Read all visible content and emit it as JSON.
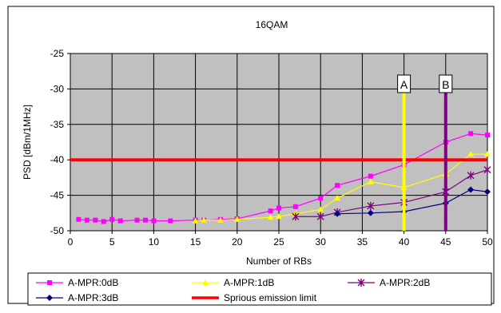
{
  "chart_data": {
    "type": "line",
    "title": "16QAM",
    "xlabel": "Number of RBs",
    "ylabel": "PSD [dBm/1MHz]",
    "xlim": [
      0,
      50
    ],
    "ylim": [
      -50,
      -25
    ],
    "x_ticks": [
      0,
      5,
      10,
      15,
      20,
      25,
      30,
      35,
      40,
      45,
      50
    ],
    "y_ticks": [
      -50,
      -45,
      -40,
      -35,
      -30,
      -25
    ],
    "grid": true,
    "plot_background": "#c0c0c0",
    "legend_position": "bottom",
    "series": [
      {
        "name": "A-MPR:0dB",
        "color": "#ff00ff",
        "marker": "square",
        "x": [
          1,
          2,
          3,
          4,
          5,
          6,
          8,
          9,
          10,
          12,
          15,
          16,
          18,
          20,
          24,
          25,
          27,
          30,
          32,
          36,
          40,
          45,
          48,
          50
        ],
        "y": [
          -48.4,
          -48.5,
          -48.5,
          -48.7,
          -48.4,
          -48.6,
          -48.5,
          -48.5,
          -48.6,
          -48.6,
          -48.5,
          -48.5,
          -48.4,
          -48.3,
          -47.2,
          -46.8,
          -46.6,
          -45.4,
          -43.6,
          -42.3,
          -40.7,
          -37.5,
          -36.3,
          -36.5
        ]
      },
      {
        "name": "A-MPR:1dB",
        "color": "#ffff00",
        "marker": "triangle",
        "x": [
          15,
          16,
          18,
          20,
          24,
          25,
          27,
          30,
          32,
          36,
          40,
          45,
          48,
          50
        ],
        "y": [
          -48.6,
          -48.5,
          -48.5,
          -48.4,
          -48.1,
          -48.0,
          -47.6,
          -47.0,
          -45.4,
          -43.1,
          -43.9,
          -42.0,
          -39.2,
          -39.2
        ]
      },
      {
        "name": "A-MPR:2dB",
        "color": "#800080",
        "marker": "star",
        "x": [
          27,
          30,
          32,
          36,
          40,
          45,
          48,
          50
        ],
        "y": [
          -48.0,
          -48.0,
          -47.4,
          -46.5,
          -46.0,
          -44.5,
          -42.2,
          -41.4
        ]
      },
      {
        "name": "A-MPR:3dB",
        "color": "#000080",
        "marker": "diamond",
        "x": [
          32,
          36,
          40,
          45,
          48,
          50
        ],
        "y": [
          -47.6,
          -47.5,
          -47.3,
          -46.1,
          -44.2,
          -44.5
        ]
      },
      {
        "name": "Sprious emission limit",
        "color": "#ff0000",
        "marker": "none",
        "x": [
          0,
          50
        ],
        "y": [
          -40,
          -40
        ]
      }
    ],
    "annotations": [
      {
        "label": "A",
        "x": 40,
        "color": "#ffff00"
      },
      {
        "label": "B",
        "x": 45,
        "color": "#800080"
      }
    ]
  }
}
